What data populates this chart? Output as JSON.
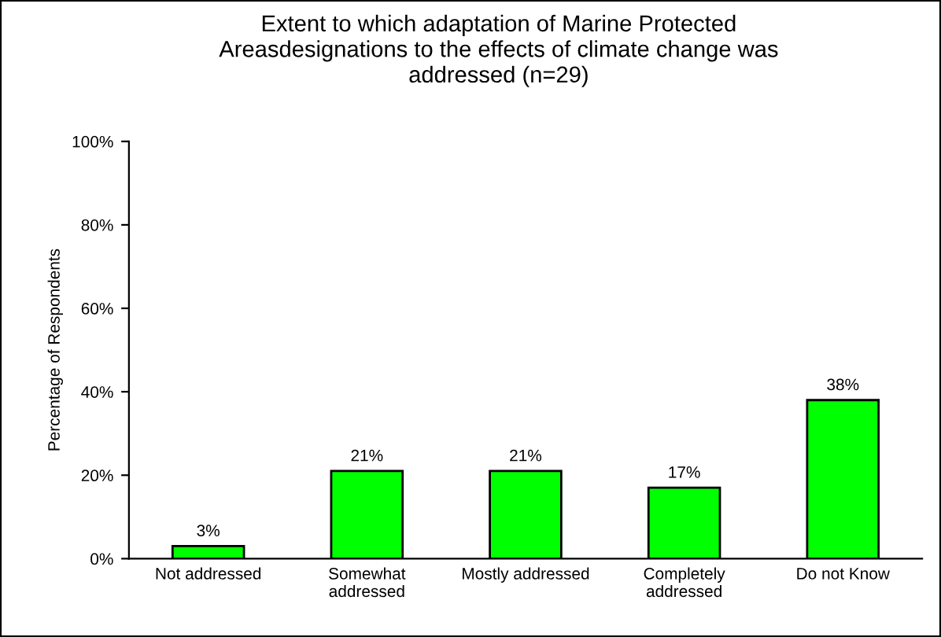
{
  "chart_data": {
    "type": "bar",
    "title": "Extent to which adaptation of Marine Protected\nAreasdesignations to the effects of climate change was\naddressed (n=29)",
    "ylabel": "Percentage of Respondents",
    "categories": [
      "Not addressed",
      "Somewhat\naddressed",
      "Mostly addressed",
      "Completely\naddressed",
      "Do not Know"
    ],
    "values": [
      3,
      21,
      21,
      17,
      38
    ],
    "value_labels": [
      "3%",
      "21%",
      "21%",
      "17%",
      "38%"
    ],
    "color": "#00ff00",
    "ylim": [
      0,
      100
    ],
    "yticks": [
      {
        "value": 0,
        "label": "0%"
      },
      {
        "value": 20,
        "label": "20%"
      },
      {
        "value": 40,
        "label": "40%"
      },
      {
        "value": 60,
        "label": "60%"
      },
      {
        "value": 80,
        "label": "80%"
      },
      {
        "value": 100,
        "label": "100%"
      }
    ],
    "grid": false,
    "legend": false
  }
}
